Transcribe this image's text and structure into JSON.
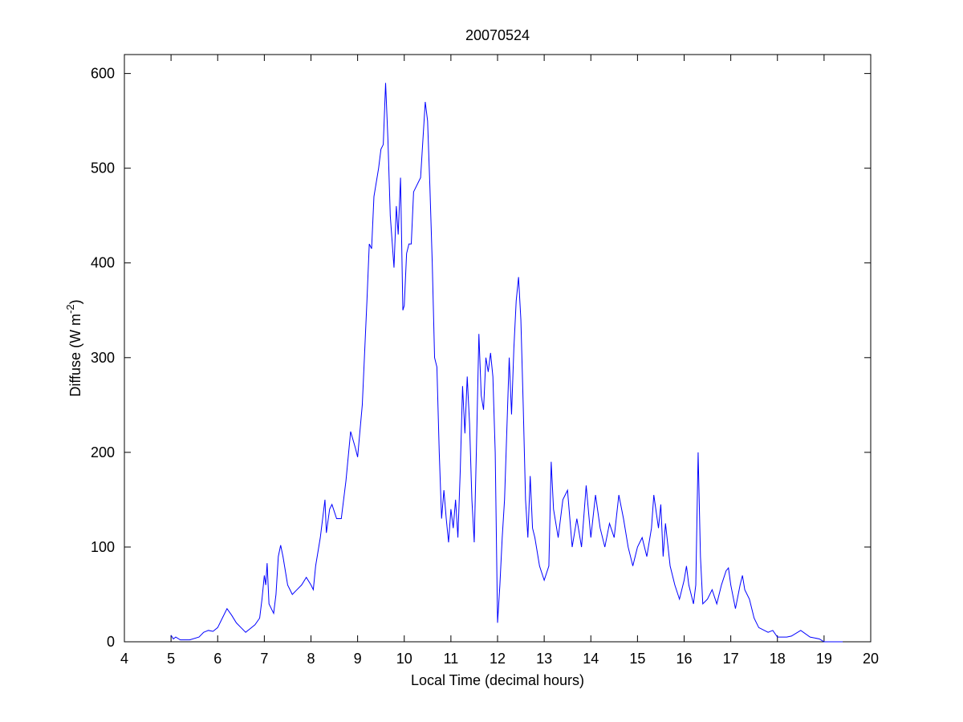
{
  "chart_data": {
    "type": "line",
    "title": "20070524",
    "xlabel": "Local Time (decimal hours)",
    "ylabel": {
      "text": "Diffuse (W m",
      "sup": "-2",
      "close": ")"
    },
    "xlim": [
      4,
      20
    ],
    "xticks": [
      4,
      5,
      6,
      7,
      8,
      9,
      10,
      11,
      12,
      13,
      14,
      15,
      16,
      17,
      18,
      19,
      20
    ],
    "ylim": [
      0,
      620
    ],
    "yticks": [
      0,
      100,
      200,
      300,
      400,
      500,
      600
    ],
    "series": [
      {
        "color": "#0000ff",
        "x": [
          5.0,
          5.05,
          5.1,
          5.2,
          5.4,
          5.6,
          5.7,
          5.8,
          5.9,
          6.0,
          6.1,
          6.2,
          6.3,
          6.4,
          6.5,
          6.6,
          6.7,
          6.8,
          6.9,
          6.95,
          7.0,
          7.03,
          7.06,
          7.1,
          7.15,
          7.2,
          7.25,
          7.3,
          7.35,
          7.4,
          7.5,
          7.6,
          7.7,
          7.8,
          7.9,
          8.0,
          8.05,
          8.1,
          8.2,
          8.3,
          8.33,
          8.4,
          8.45,
          8.55,
          8.65,
          8.75,
          8.85,
          8.95,
          9.0,
          9.1,
          9.2,
          9.25,
          9.3,
          9.35,
          9.45,
          9.5,
          9.55,
          9.6,
          9.65,
          9.7,
          9.78,
          9.83,
          9.87,
          9.92,
          9.97,
          10.0,
          10.05,
          10.1,
          10.15,
          10.2,
          10.3,
          10.35,
          10.4,
          10.45,
          10.5,
          10.55,
          10.6,
          10.65,
          10.7,
          10.75,
          10.8,
          10.85,
          10.9,
          10.95,
          11.0,
          11.05,
          11.1,
          11.15,
          11.2,
          11.25,
          11.3,
          11.35,
          11.4,
          11.45,
          11.5,
          11.55,
          11.6,
          11.65,
          11.7,
          11.75,
          11.8,
          11.85,
          11.9,
          11.95,
          12.0,
          12.05,
          12.1,
          12.15,
          12.2,
          12.25,
          12.3,
          12.35,
          12.4,
          12.45,
          12.5,
          12.55,
          12.6,
          12.65,
          12.7,
          12.75,
          12.8,
          12.9,
          13.0,
          13.1,
          13.15,
          13.2,
          13.3,
          13.4,
          13.5,
          13.55,
          13.6,
          13.7,
          13.8,
          13.9,
          14.0,
          14.1,
          14.2,
          14.3,
          14.4,
          14.5,
          14.6,
          14.7,
          14.8,
          14.9,
          15.0,
          15.1,
          15.2,
          15.3,
          15.35,
          15.45,
          15.5,
          15.55,
          15.6,
          15.7,
          15.8,
          15.9,
          16.0,
          16.05,
          16.1,
          16.2,
          16.25,
          16.3,
          16.35,
          16.4,
          16.5,
          16.6,
          16.7,
          16.8,
          16.9,
          16.95,
          17.0,
          17.1,
          17.2,
          17.25,
          17.3,
          17.4,
          17.5,
          17.6,
          17.8,
          17.9,
          18.0,
          18.2,
          18.3,
          18.5,
          18.7,
          18.9,
          19.0,
          19.2,
          19.4
        ],
        "values": [
          7,
          3,
          5,
          2,
          2,
          5,
          10,
          12,
          11,
          15,
          25,
          35,
          28,
          20,
          15,
          10,
          14,
          18,
          25,
          45,
          70,
          60,
          83,
          40,
          35,
          30,
          50,
          90,
          102,
          90,
          60,
          50,
          55,
          60,
          68,
          60,
          55,
          80,
          110,
          150,
          115,
          140,
          145,
          130,
          130,
          170,
          222,
          205,
          195,
          250,
          360,
          420,
          415,
          470,
          500,
          520,
          525,
          590,
          530,
          450,
          395,
          460,
          430,
          490,
          350,
          355,
          410,
          420,
          420,
          475,
          485,
          490,
          530,
          570,
          550,
          480,
          400,
          300,
          290,
          200,
          130,
          160,
          130,
          105,
          140,
          120,
          150,
          110,
          180,
          270,
          220,
          280,
          230,
          150,
          105,
          210,
          325,
          260,
          245,
          300,
          285,
          305,
          280,
          200,
          20,
          60,
          110,
          150,
          225,
          300,
          240,
          310,
          360,
          385,
          340,
          250,
          150,
          110,
          175,
          120,
          110,
          80,
          65,
          80,
          190,
          140,
          110,
          150,
          160,
          130,
          100,
          130,
          100,
          165,
          110,
          155,
          120,
          100,
          125,
          110,
          155,
          130,
          100,
          80,
          100,
          110,
          90,
          120,
          155,
          120,
          145,
          90,
          125,
          80,
          60,
          45,
          65,
          80,
          60,
          40,
          60,
          200,
          90,
          40,
          45,
          55,
          40,
          60,
          75,
          78,
          60,
          35,
          60,
          70,
          55,
          45,
          25,
          15,
          10,
          12,
          5,
          5,
          6,
          12,
          5,
          3,
          0,
          0,
          0
        ]
      }
    ]
  }
}
